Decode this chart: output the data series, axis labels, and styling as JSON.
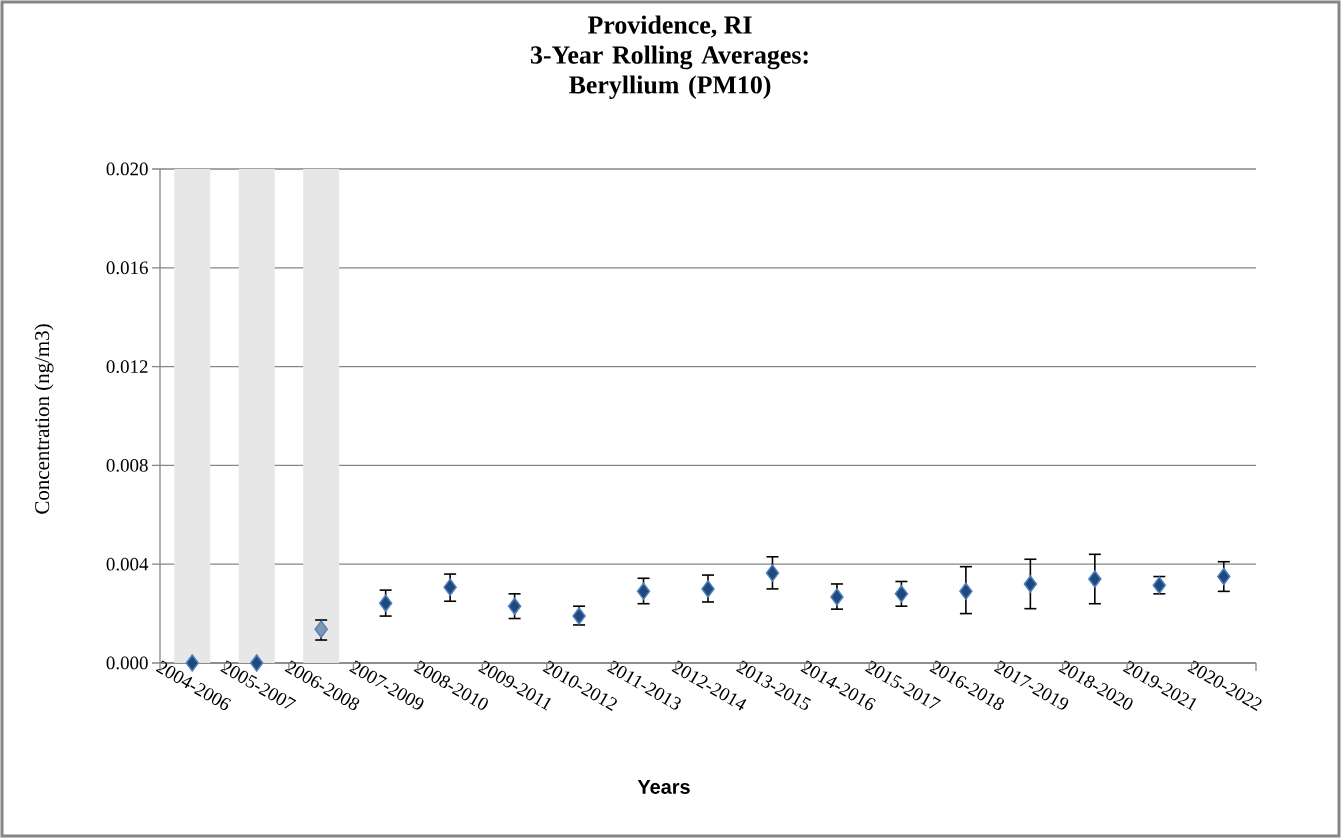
{
  "chart_data": {
    "type": "scatter",
    "title": "Providence, RI",
    "subtitle": "3-Year Rolling Averages: Beryllium (PM10)",
    "xlabel": "Years",
    "ylabel": "Concentration (ng/m3)",
    "categories": [
      "2004-2006",
      "2005-2007",
      "2006-2008",
      "2007-2009",
      "2008-2010",
      "2009-2011",
      "2010-2012",
      "2011-2013",
      "2012-2014",
      "2013-2015",
      "2014-2016",
      "2015-2017",
      "2016-2018",
      "2017-2019",
      "2018-2020",
      "2019-2021",
      "2020-2022"
    ],
    "series": [
      {
        "type": "bar",
        "color": "#e7e7e7",
        "values": [
          0.02,
          0.02,
          0.02,
          null,
          null,
          null,
          null,
          null,
          null,
          null,
          null,
          null,
          null,
          null,
          null,
          null,
          null
        ]
      },
      {
        "marker": "diamond",
        "colors": [
          "#1f497d",
          "#1f497d",
          "#8497b0",
          "#1f497d",
          "#1f497d",
          "#1f497d",
          "#1f497d",
          "#1f497d",
          "#1f497d",
          "#1f497d",
          "#1f497d",
          "#1f497d",
          "#1f497d",
          "#1f497d",
          "#1f497d",
          "#1f497d",
          "#1f497d"
        ],
        "values": [
          0.0,
          0.0,
          0.00137,
          0.00242,
          0.00307,
          0.0023,
          0.0019,
          0.0029,
          0.003,
          0.00364,
          0.00267,
          0.0028,
          0.0029,
          0.0032,
          0.0034,
          0.00315,
          0.0035
        ],
        "errors": [
          null,
          null,
          [
            0.00093,
            0.00174
          ],
          [
            0.0019,
            0.00295
          ],
          [
            0.0025,
            0.0036
          ],
          [
            0.0018,
            0.0028
          ],
          [
            0.00154,
            0.0023
          ],
          [
            0.0024,
            0.00343
          ],
          [
            0.00247,
            0.00356
          ],
          [
            0.003,
            0.0043
          ],
          [
            0.00218,
            0.0032
          ],
          [
            0.0023,
            0.0033
          ],
          [
            0.002,
            0.0039
          ],
          [
            0.0022,
            0.0042
          ],
          [
            0.0024,
            0.0044
          ],
          [
            0.0028,
            0.0035
          ],
          [
            0.0029,
            0.0041
          ]
        ]
      }
    ],
    "ylim": [
      0,
      0.02
    ],
    "yticks": [
      {
        "value": 0,
        "label": "0.000"
      },
      0.004,
      0.008,
      0.012,
      0.016,
      {
        "value": 0.02,
        "label": "0.020"
      }
    ],
    "grid": "y"
  }
}
